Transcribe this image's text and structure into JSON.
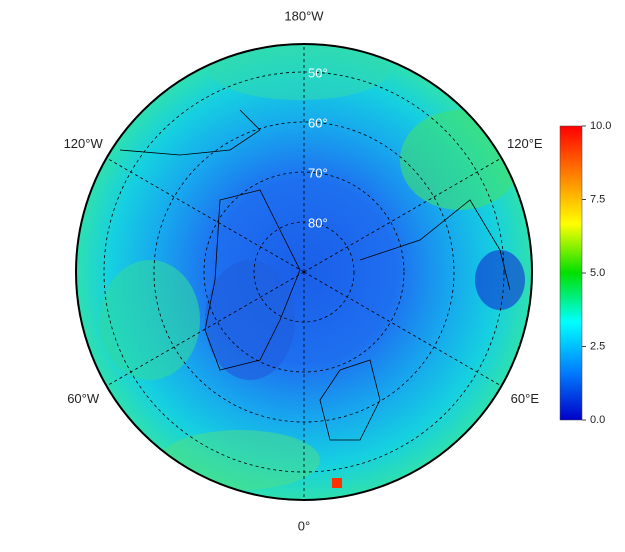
{
  "map": {
    "projection": "polar",
    "latitudes": [
      {
        "value": 50,
        "label": "50°"
      },
      {
        "value": 60,
        "label": "60°"
      },
      {
        "value": 70,
        "label": "70°"
      },
      {
        "value": 80,
        "label": "80°"
      }
    ],
    "longitudes": [
      {
        "value": -180,
        "label": "180°W"
      },
      {
        "value": -120,
        "label": "120°W"
      },
      {
        "value": 120,
        "label": "120°E"
      },
      {
        "value": -60,
        "label": "60°W"
      },
      {
        "value": 60,
        "label": "60°E"
      },
      {
        "value": 0,
        "label": "0°"
      }
    ],
    "colorbar": {
      "clim": [
        0,
        10
      ],
      "ticks": [
        {
          "value": 0,
          "label": "0.0"
        },
        {
          "value": 2.5,
          "label": "2.5"
        },
        {
          "value": 5,
          "label": "5.0"
        },
        {
          "value": 7.5,
          "label": "7.5"
        },
        {
          "value": 10,
          "label": "10.0"
        }
      ],
      "colors": [
        "#0000c8",
        "#0080ff",
        "#00ffff",
        "#00e000",
        "#ffff00",
        "#ff8000",
        "#ff0000"
      ]
    }
  }
}
